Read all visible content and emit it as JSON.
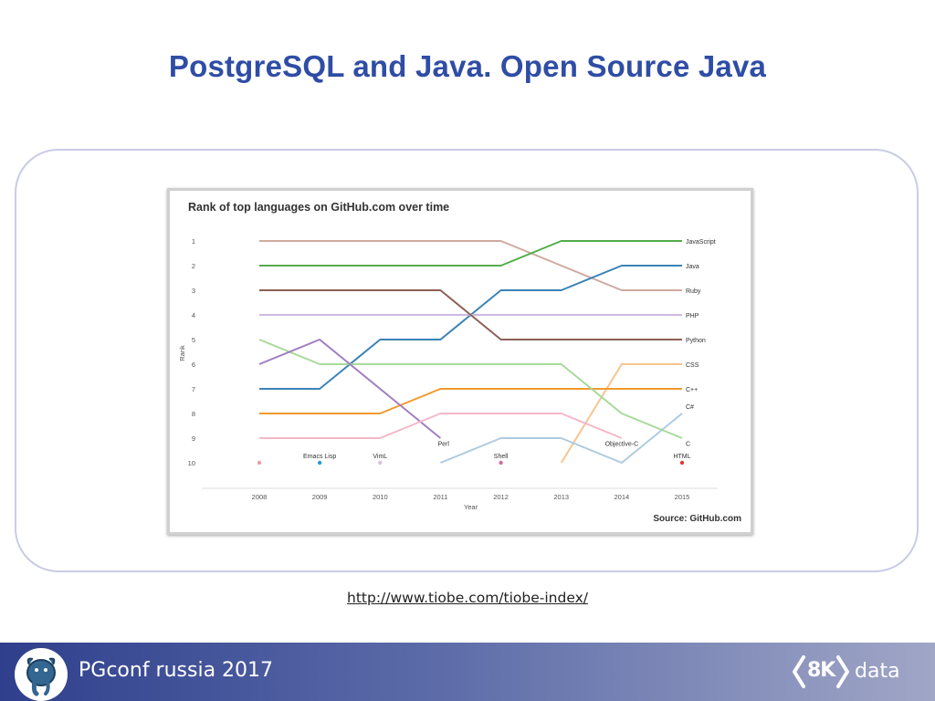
{
  "slide": {
    "title": "PostgreSQL and Java. Open Source Java",
    "source_url": "http://www.tiobe.com/tiobe-index/",
    "footer_text": "PGconf russia 2017",
    "brand_number": "8K",
    "brand_word": "data"
  },
  "chart_data": {
    "type": "line",
    "title": "Rank of top languages on GitHub.com over time",
    "xlabel": "Year",
    "ylabel": "Rank",
    "source": "Source: GitHub.com",
    "x": [
      2008,
      2009,
      2010,
      2011,
      2012,
      2013,
      2014,
      2015
    ],
    "y_ticks": [
      1,
      2,
      3,
      4,
      5,
      6,
      7,
      8,
      9,
      10
    ],
    "y_inverted": true,
    "grid": false,
    "series": [
      {
        "name": "JavaScript",
        "color": "#cfaaa0",
        "x": [
          2008,
          2009,
          2010,
          2011,
          2012,
          2013,
          2014,
          2015
        ],
        "y": [
          1,
          1,
          1,
          1,
          1,
          2,
          3,
          3
        ],
        "label_year": 2015,
        "label_rank": 1
      },
      {
        "name": "Java",
        "color": "#3b83b5",
        "x": [
          2008,
          2009,
          2010,
          2011,
          2012,
          2013,
          2014,
          2015
        ],
        "y": [
          7,
          7,
          5,
          5,
          3,
          3,
          2,
          2
        ],
        "label_year": 2015,
        "label_rank": 2
      },
      {
        "name": "Ruby",
        "color": "#cfaaa0",
        "x": [
          2014,
          2015
        ],
        "y": [
          3,
          3
        ],
        "label_year": 2015,
        "label_rank": 3
      },
      {
        "name": "PHP",
        "color": "#cbb9e3",
        "x": [
          2008,
          2009,
          2010,
          2011,
          2012,
          2013,
          2014,
          2015
        ],
        "y": [
          4,
          4,
          4,
          4,
          4,
          4,
          4,
          4
        ],
        "label_year": 2015,
        "label_rank": 4
      },
      {
        "name": "Python",
        "color": "#8c6055",
        "x": [
          2008,
          2009,
          2010,
          2011,
          2012,
          2013,
          2014,
          2015
        ],
        "y": [
          3,
          3,
          3,
          3,
          5,
          5,
          5,
          5
        ],
        "label_year": 2015,
        "label_rank": 5
      },
      {
        "name": "CSS",
        "color": "#f7c48f",
        "x": [
          2013,
          2014,
          2015
        ],
        "y": [
          10,
          6,
          6
        ],
        "label_year": 2015,
        "label_rank": 6
      },
      {
        "name": "C++",
        "color": "#f09a2c",
        "x": [
          2008,
          2009,
          2010,
          2011,
          2012,
          2013,
          2014,
          2015
        ],
        "y": [
          8,
          8,
          8,
          7,
          7,
          7,
          7,
          7
        ],
        "label_year": 2015,
        "label_rank": 7
      },
      {
        "name": "C#",
        "color": "#aecbe0",
        "x": [
          2011,
          2012,
          2013,
          2014,
          2015
        ],
        "y": [
          10,
          9,
          9,
          10,
          8
        ],
        "label_year": 2015,
        "label_rank": 7.7
      },
      {
        "name": "C",
        "color": "#52ad4a",
        "x": [
          2008,
          2009,
          2010,
          2011,
          2012,
          2013,
          2014,
          2015
        ],
        "y": [
          2,
          2,
          2,
          2,
          2,
          1,
          1,
          1
        ],
        "label_year": 2015,
        "label_rank": 9.2
      },
      {
        "name": "",
        "color": "#a8d99a",
        "x": [
          2008,
          2009,
          2010,
          2011,
          2012,
          2013,
          2014,
          2015
        ],
        "y": [
          5,
          6,
          6,
          6,
          6,
          6,
          8,
          9
        ]
      },
      {
        "name": "Perl",
        "color": "#a17fc0",
        "x": [
          2008,
          2009,
          2010,
          2011
        ],
        "y": [
          6,
          5,
          7,
          9
        ],
        "label_year": 2011.05,
        "label_rank": 9.2
      },
      {
        "name": "Objective-C",
        "color": "#f4b8c8",
        "x": [
          2008,
          2009,
          2010,
          2011,
          2012,
          2013,
          2014
        ],
        "y": [
          9,
          9,
          9,
          8,
          8,
          8,
          9
        ],
        "label_year": 2014,
        "label_rank": 9.2
      },
      {
        "name": "Emacs Lisp",
        "color": "#2a9ad6",
        "x": [
          2009
        ],
        "y": [
          10
        ],
        "label_year": 2009,
        "label_rank": 9.7
      },
      {
        "name": "VimL",
        "color": "#d9c2e0",
        "x": [
          2010
        ],
        "y": [
          10
        ],
        "label_year": 2010,
        "label_rank": 9.7
      },
      {
        "name": "Shell",
        "color": "#d86a9e",
        "x": [
          2012
        ],
        "y": [
          10
        ],
        "label_year": 2012,
        "label_rank": 9.7
      },
      {
        "name": "HTML",
        "color": "#e03a3a",
        "x": [
          2015
        ],
        "y": [
          10
        ],
        "label_year": 2015,
        "label_rank": 9.7
      },
      {
        "name": "",
        "color": "#e8a0a8",
        "x": [
          2008
        ],
        "y": [
          10
        ]
      }
    ]
  }
}
